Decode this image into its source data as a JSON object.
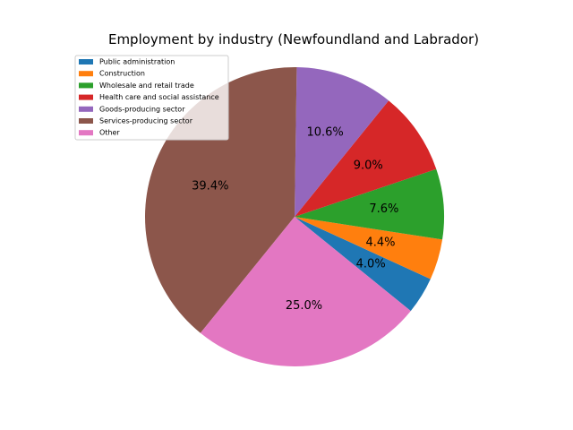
{
  "chart_data": {
    "type": "pie",
    "title": "Employment by industry (Newfoundland and Labrador)",
    "labels": [
      "Public administration",
      "Construction",
      "Wholesale and retail trade",
      "Health care and social assistance",
      "Goods-producing sector",
      "Services-producing sector",
      "Other"
    ],
    "values": [
      4.0,
      4.4,
      7.6,
      9.0,
      10.6,
      39.4,
      25.0
    ],
    "pct_labels": [
      "4.0%",
      "4.4%",
      "7.6%",
      "9.0%",
      "10.6%",
      "39.4%",
      "25.0%"
    ],
    "colors": [
      "#1f77b4",
      "#ff7f0e",
      "#2ca02c",
      "#d62728",
      "#9467bd",
      "#8c564b",
      "#e377c2"
    ],
    "start_angle_deg": -39,
    "direction": "counterclockwise",
    "legend_position": "upper-left"
  }
}
